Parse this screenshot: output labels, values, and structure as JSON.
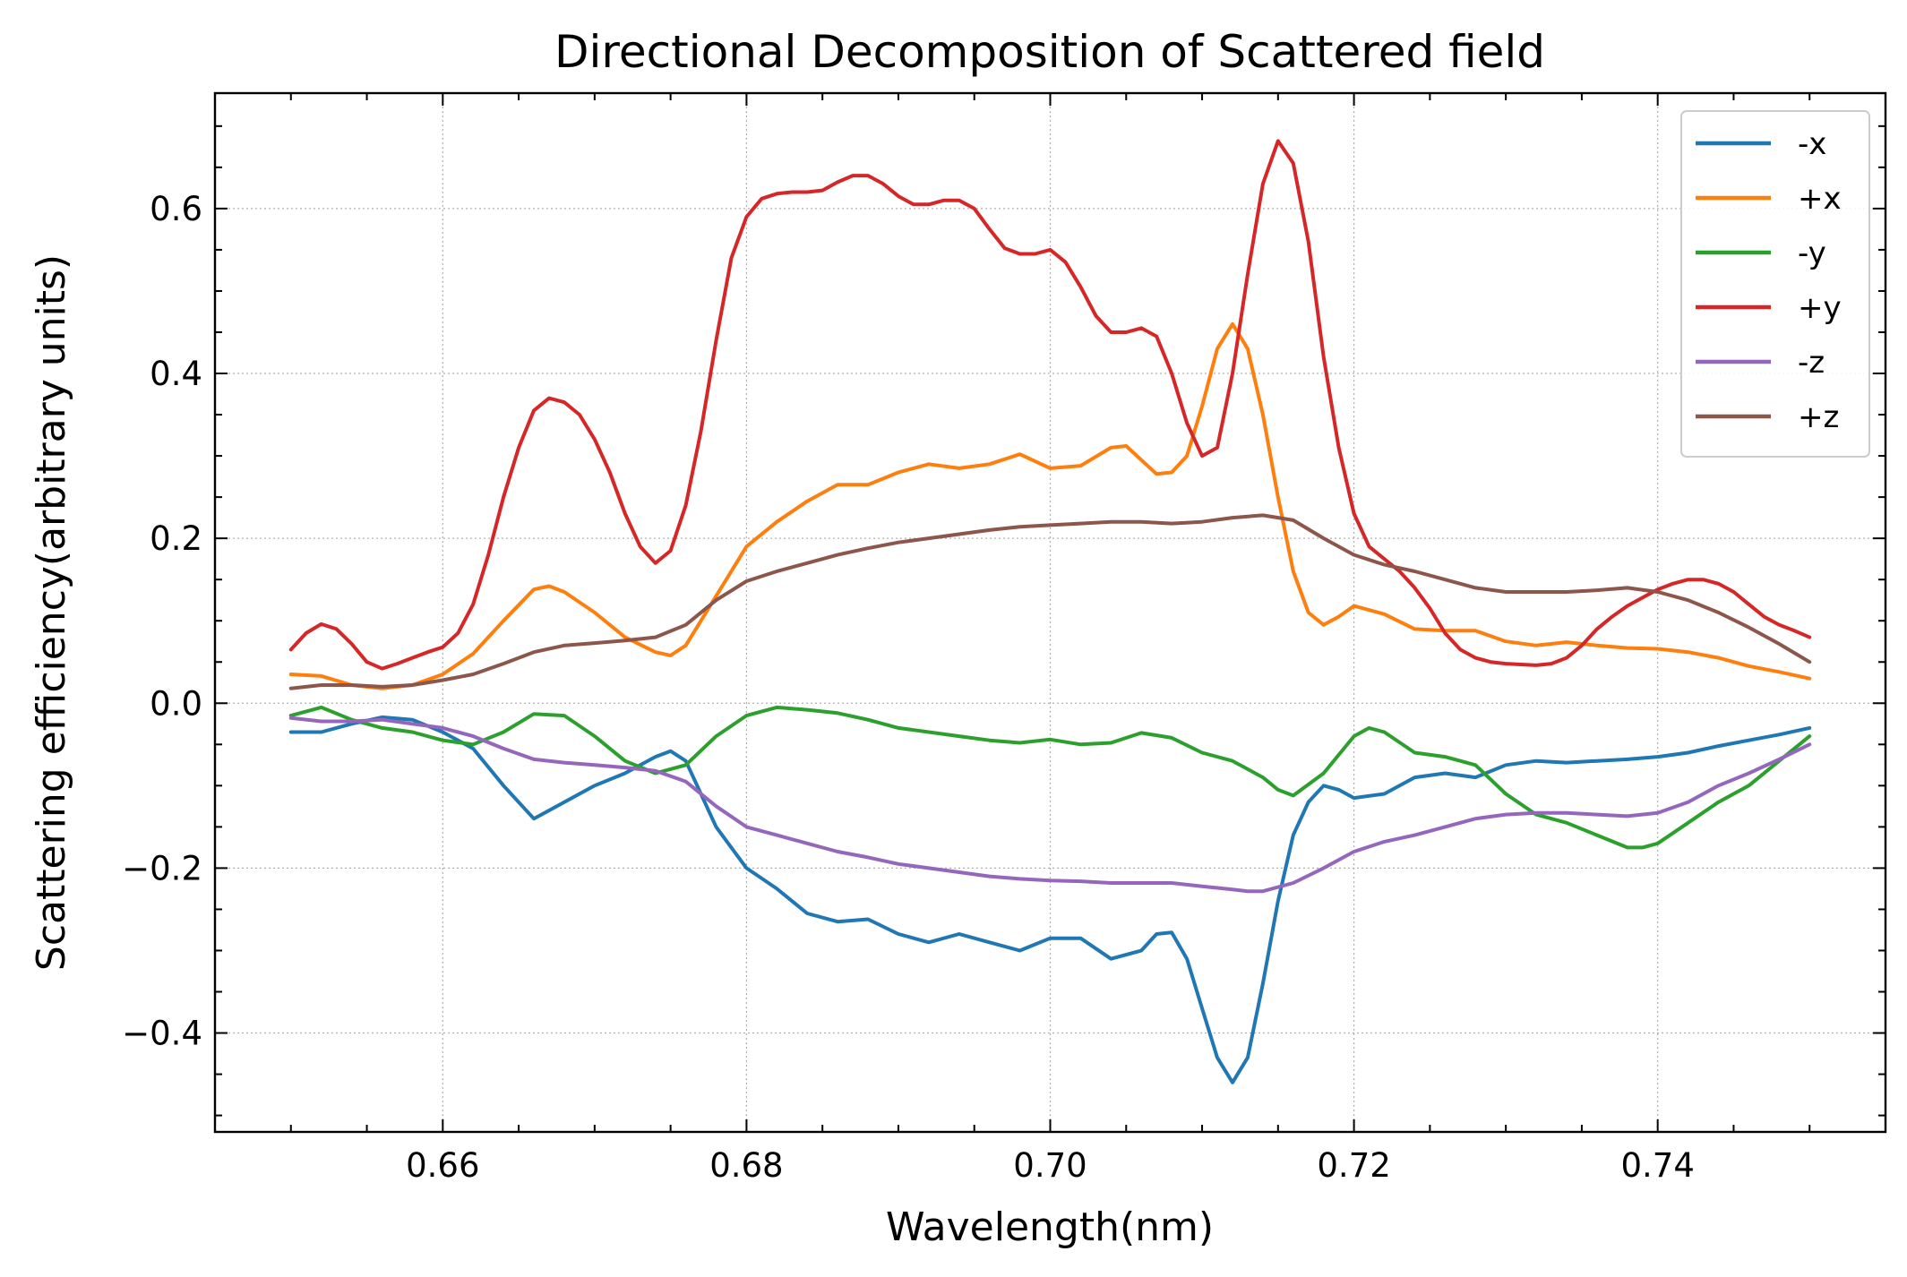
{
  "chart_data": {
    "type": "line",
    "title": "Directional Decomposition of Scattered field",
    "xlabel": "Wavelength(nm)",
    "ylabel": "Scattering efficiency(arbitrary units)",
    "xlim": [
      0.645,
      0.755
    ],
    "ylim": [
      -0.52,
      0.74
    ],
    "xticks": [
      0.66,
      0.68,
      0.7,
      0.72,
      0.74
    ],
    "xtick_labels": [
      "0.66",
      "0.68",
      "0.70",
      "0.72",
      "0.74"
    ],
    "yticks": [
      -0.4,
      -0.2,
      0.0,
      0.2,
      0.4,
      0.6
    ],
    "ytick_labels": [
      "−0.4",
      "−0.2",
      "0.0",
      "0.2",
      "0.4",
      "0.6"
    ],
    "grid": true,
    "legend_position": "top-right",
    "series": [
      {
        "name": "-x",
        "color": "#1f77b4",
        "x": [
          0.65,
          0.652,
          0.654,
          0.656,
          0.658,
          0.66,
          0.662,
          0.664,
          0.666,
          0.668,
          0.67,
          0.672,
          0.674,
          0.675,
          0.676,
          0.678,
          0.68,
          0.682,
          0.684,
          0.686,
          0.688,
          0.69,
          0.692,
          0.694,
          0.696,
          0.698,
          0.7,
          0.702,
          0.704,
          0.706,
          0.707,
          0.708,
          0.709,
          0.71,
          0.711,
          0.712,
          0.713,
          0.714,
          0.715,
          0.716,
          0.717,
          0.718,
          0.719,
          0.72,
          0.722,
          0.724,
          0.726,
          0.728,
          0.73,
          0.732,
          0.734,
          0.736,
          0.738,
          0.74,
          0.742,
          0.744,
          0.746,
          0.748,
          0.75
        ],
        "y": [
          -0.035,
          -0.035,
          -0.025,
          -0.017,
          -0.02,
          -0.035,
          -0.055,
          -0.1,
          -0.14,
          -0.12,
          -0.1,
          -0.085,
          -0.065,
          -0.058,
          -0.07,
          -0.15,
          -0.2,
          -0.225,
          -0.255,
          -0.265,
          -0.262,
          -0.28,
          -0.29,
          -0.28,
          -0.29,
          -0.3,
          -0.285,
          -0.285,
          -0.31,
          -0.3,
          -0.28,
          -0.278,
          -0.31,
          -0.37,
          -0.43,
          -0.46,
          -0.43,
          -0.34,
          -0.24,
          -0.16,
          -0.12,
          -0.1,
          -0.105,
          -0.115,
          -0.11,
          -0.09,
          -0.085,
          -0.09,
          -0.075,
          -0.07,
          -0.072,
          -0.07,
          -0.068,
          -0.065,
          -0.06,
          -0.052,
          -0.045,
          -0.038,
          -0.03
        ]
      },
      {
        "name": "+x",
        "color": "#ff7f0e",
        "x": [
          0.65,
          0.652,
          0.654,
          0.656,
          0.658,
          0.66,
          0.662,
          0.664,
          0.666,
          0.667,
          0.668,
          0.67,
          0.672,
          0.674,
          0.675,
          0.676,
          0.678,
          0.68,
          0.682,
          0.684,
          0.686,
          0.688,
          0.69,
          0.692,
          0.694,
          0.696,
          0.698,
          0.7,
          0.702,
          0.704,
          0.705,
          0.706,
          0.707,
          0.708,
          0.709,
          0.71,
          0.711,
          0.712,
          0.713,
          0.714,
          0.715,
          0.716,
          0.717,
          0.718,
          0.719,
          0.72,
          0.722,
          0.724,
          0.726,
          0.728,
          0.73,
          0.732,
          0.734,
          0.736,
          0.738,
          0.74,
          0.742,
          0.744,
          0.746,
          0.748,
          0.75
        ],
        "y": [
          0.035,
          0.033,
          0.022,
          0.018,
          0.022,
          0.035,
          0.06,
          0.1,
          0.138,
          0.142,
          0.135,
          0.11,
          0.08,
          0.062,
          0.058,
          0.07,
          0.13,
          0.19,
          0.22,
          0.245,
          0.265,
          0.265,
          0.28,
          0.29,
          0.285,
          0.29,
          0.302,
          0.285,
          0.288,
          0.31,
          0.312,
          0.295,
          0.278,
          0.28,
          0.3,
          0.36,
          0.43,
          0.46,
          0.43,
          0.35,
          0.25,
          0.16,
          0.11,
          0.095,
          0.105,
          0.118,
          0.108,
          0.09,
          0.088,
          0.088,
          0.075,
          0.07,
          0.074,
          0.07,
          0.067,
          0.066,
          0.062,
          0.055,
          0.045,
          0.038,
          0.03
        ]
      },
      {
        "name": "-y",
        "color": "#2ca02c",
        "x": [
          0.65,
          0.652,
          0.654,
          0.656,
          0.658,
          0.66,
          0.662,
          0.664,
          0.666,
          0.668,
          0.67,
          0.672,
          0.674,
          0.676,
          0.678,
          0.68,
          0.682,
          0.684,
          0.686,
          0.688,
          0.69,
          0.692,
          0.694,
          0.696,
          0.698,
          0.7,
          0.702,
          0.704,
          0.706,
          0.708,
          0.71,
          0.712,
          0.714,
          0.715,
          0.716,
          0.718,
          0.72,
          0.721,
          0.722,
          0.724,
          0.726,
          0.728,
          0.73,
          0.732,
          0.734,
          0.736,
          0.738,
          0.739,
          0.74,
          0.742,
          0.744,
          0.746,
          0.748,
          0.75
        ],
        "y": [
          -0.015,
          -0.005,
          -0.02,
          -0.03,
          -0.035,
          -0.045,
          -0.05,
          -0.035,
          -0.013,
          -0.015,
          -0.04,
          -0.07,
          -0.085,
          -0.075,
          -0.04,
          -0.015,
          -0.005,
          -0.008,
          -0.012,
          -0.02,
          -0.03,
          -0.035,
          -0.04,
          -0.045,
          -0.048,
          -0.044,
          -0.05,
          -0.048,
          -0.036,
          -0.042,
          -0.06,
          -0.07,
          -0.09,
          -0.105,
          -0.112,
          -0.085,
          -0.04,
          -0.03,
          -0.035,
          -0.06,
          -0.065,
          -0.075,
          -0.11,
          -0.135,
          -0.145,
          -0.16,
          -0.175,
          -0.175,
          -0.17,
          -0.145,
          -0.12,
          -0.1,
          -0.07,
          -0.04
        ]
      },
      {
        "name": "+y",
        "color": "#d62728",
        "x": [
          0.65,
          0.651,
          0.652,
          0.653,
          0.654,
          0.655,
          0.656,
          0.657,
          0.658,
          0.659,
          0.66,
          0.661,
          0.662,
          0.663,
          0.664,
          0.665,
          0.666,
          0.667,
          0.668,
          0.669,
          0.67,
          0.671,
          0.672,
          0.673,
          0.674,
          0.675,
          0.676,
          0.677,
          0.678,
          0.679,
          0.68,
          0.681,
          0.682,
          0.683,
          0.684,
          0.685,
          0.686,
          0.687,
          0.688,
          0.689,
          0.69,
          0.691,
          0.692,
          0.693,
          0.694,
          0.695,
          0.696,
          0.697,
          0.698,
          0.699,
          0.7,
          0.701,
          0.702,
          0.703,
          0.704,
          0.705,
          0.706,
          0.707,
          0.708,
          0.709,
          0.71,
          0.711,
          0.712,
          0.713,
          0.714,
          0.715,
          0.716,
          0.717,
          0.718,
          0.719,
          0.72,
          0.721,
          0.722,
          0.723,
          0.724,
          0.725,
          0.726,
          0.727,
          0.728,
          0.729,
          0.73,
          0.731,
          0.732,
          0.733,
          0.734,
          0.735,
          0.736,
          0.737,
          0.738,
          0.739,
          0.74,
          0.741,
          0.742,
          0.743,
          0.744,
          0.745,
          0.746,
          0.747,
          0.748,
          0.749,
          0.75
        ],
        "y": [
          0.065,
          0.085,
          0.096,
          0.09,
          0.072,
          0.05,
          0.042,
          0.048,
          0.055,
          0.062,
          0.068,
          0.085,
          0.12,
          0.18,
          0.25,
          0.31,
          0.355,
          0.37,
          0.365,
          0.35,
          0.32,
          0.28,
          0.23,
          0.19,
          0.17,
          0.185,
          0.24,
          0.33,
          0.44,
          0.54,
          0.59,
          0.612,
          0.618,
          0.62,
          0.62,
          0.622,
          0.632,
          0.64,
          0.64,
          0.63,
          0.615,
          0.605,
          0.605,
          0.61,
          0.61,
          0.6,
          0.575,
          0.552,
          0.545,
          0.545,
          0.55,
          0.535,
          0.505,
          0.47,
          0.45,
          0.45,
          0.455,
          0.445,
          0.4,
          0.34,
          0.3,
          0.31,
          0.4,
          0.52,
          0.63,
          0.682,
          0.655,
          0.56,
          0.42,
          0.31,
          0.23,
          0.19,
          0.175,
          0.16,
          0.14,
          0.115,
          0.085,
          0.065,
          0.055,
          0.05,
          0.048,
          0.047,
          0.046,
          0.048,
          0.055,
          0.07,
          0.09,
          0.105,
          0.118,
          0.128,
          0.138,
          0.145,
          0.15,
          0.15,
          0.145,
          0.135,
          0.12,
          0.105,
          0.095,
          0.088,
          0.08
        ]
      },
      {
        "name": "-z",
        "color": "#9467bd",
        "x": [
          0.65,
          0.652,
          0.654,
          0.656,
          0.658,
          0.66,
          0.662,
          0.664,
          0.666,
          0.668,
          0.67,
          0.672,
          0.674,
          0.676,
          0.678,
          0.68,
          0.682,
          0.684,
          0.686,
          0.688,
          0.69,
          0.692,
          0.694,
          0.696,
          0.698,
          0.7,
          0.702,
          0.704,
          0.706,
          0.708,
          0.71,
          0.712,
          0.713,
          0.714,
          0.716,
          0.718,
          0.72,
          0.722,
          0.724,
          0.726,
          0.728,
          0.73,
          0.732,
          0.734,
          0.736,
          0.738,
          0.74,
          0.742,
          0.744,
          0.746,
          0.748,
          0.75
        ],
        "y": [
          -0.018,
          -0.022,
          -0.022,
          -0.02,
          -0.025,
          -0.03,
          -0.04,
          -0.055,
          -0.068,
          -0.072,
          -0.075,
          -0.078,
          -0.082,
          -0.095,
          -0.125,
          -0.15,
          -0.16,
          -0.17,
          -0.18,
          -0.187,
          -0.195,
          -0.2,
          -0.205,
          -0.21,
          -0.213,
          -0.215,
          -0.216,
          -0.218,
          -0.218,
          -0.218,
          -0.222,
          -0.226,
          -0.228,
          -0.228,
          -0.218,
          -0.2,
          -0.18,
          -0.168,
          -0.16,
          -0.15,
          -0.14,
          -0.135,
          -0.133,
          -0.133,
          -0.135,
          -0.137,
          -0.133,
          -0.12,
          -0.1,
          -0.085,
          -0.068,
          -0.05
        ]
      },
      {
        "name": "+z",
        "color": "#8c564b",
        "x": [
          0.65,
          0.652,
          0.654,
          0.656,
          0.658,
          0.66,
          0.662,
          0.664,
          0.666,
          0.668,
          0.67,
          0.672,
          0.674,
          0.676,
          0.678,
          0.68,
          0.682,
          0.684,
          0.686,
          0.688,
          0.69,
          0.692,
          0.694,
          0.696,
          0.698,
          0.7,
          0.702,
          0.704,
          0.706,
          0.708,
          0.71,
          0.712,
          0.714,
          0.716,
          0.718,
          0.72,
          0.722,
          0.724,
          0.726,
          0.728,
          0.73,
          0.732,
          0.734,
          0.736,
          0.738,
          0.74,
          0.742,
          0.744,
          0.746,
          0.748,
          0.75
        ],
        "y": [
          0.018,
          0.022,
          0.022,
          0.02,
          0.022,
          0.028,
          0.035,
          0.048,
          0.062,
          0.07,
          0.073,
          0.076,
          0.08,
          0.095,
          0.125,
          0.148,
          0.16,
          0.17,
          0.18,
          0.188,
          0.195,
          0.2,
          0.205,
          0.21,
          0.214,
          0.216,
          0.218,
          0.22,
          0.22,
          0.218,
          0.22,
          0.225,
          0.228,
          0.222,
          0.2,
          0.18,
          0.168,
          0.16,
          0.15,
          0.14,
          0.135,
          0.135,
          0.135,
          0.137,
          0.14,
          0.135,
          0.125,
          0.11,
          0.092,
          0.072,
          0.05
        ]
      }
    ]
  }
}
